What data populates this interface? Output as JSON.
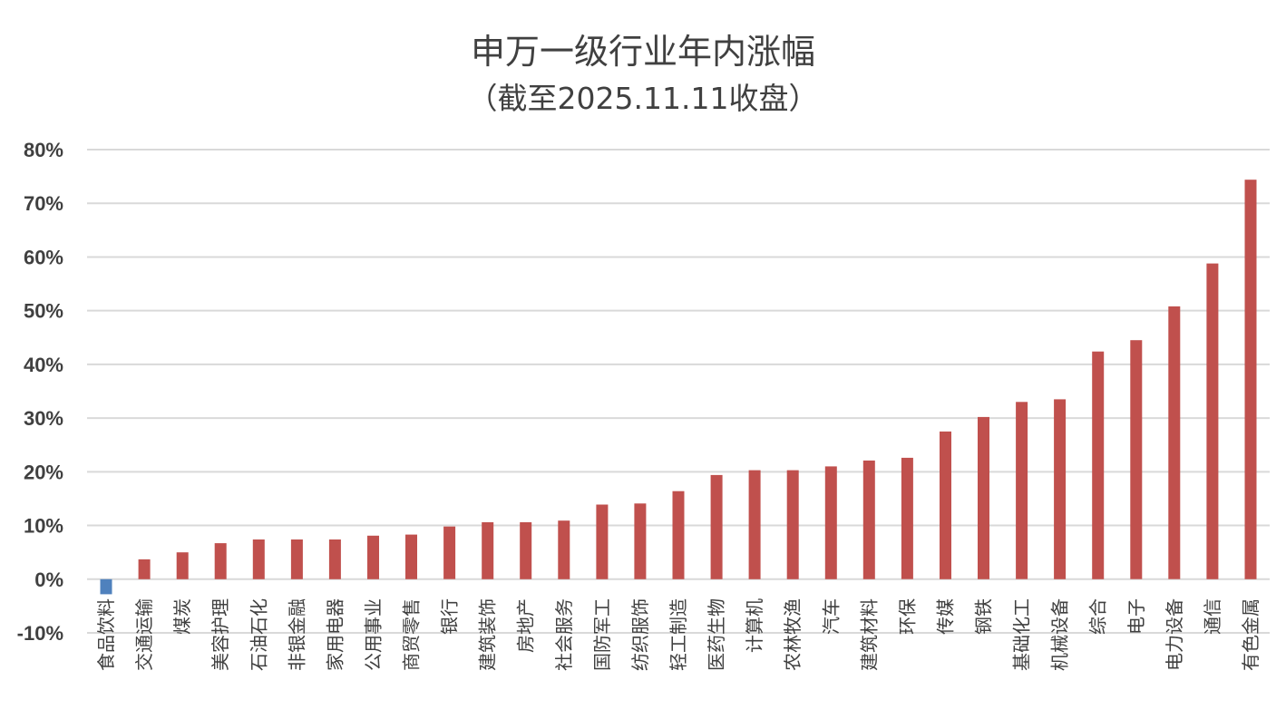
{
  "chart_data": {
    "type": "bar",
    "title": "申万一级行业年内涨幅",
    "subtitle": "（截至2025.11.11收盘）",
    "ylim": [
      -10,
      80
    ],
    "yticks": [
      80,
      70,
      60,
      50,
      40,
      30,
      20,
      10,
      0,
      -10
    ],
    "ytick_labels": [
      "80%",
      "70%",
      "60%",
      "50%",
      "40%",
      "30%",
      "20%",
      "10%",
      "0%",
      "-10%"
    ],
    "grid": true,
    "colors": {
      "positive": "#c0504d",
      "negative": "#4f81bd",
      "grid": "#d9d9d9",
      "text": "#404040"
    },
    "categories": [
      "食品饮料",
      "交通运输",
      "煤炭",
      "美容护理",
      "石油石化",
      "非银金融",
      "家用电器",
      "公用事业",
      "商贸零售",
      "银行",
      "建筑装饰",
      "房地产",
      "社会服务",
      "国防军工",
      "纺织服饰",
      "轻工制造",
      "医药生物",
      "计算机",
      "农林牧渔",
      "汽车",
      "建筑材料",
      "环保",
      "传媒",
      "钢铁",
      "基础化工",
      "机械设备",
      "综合",
      "电子",
      "电力设备",
      "通信",
      "有色金属"
    ],
    "values": [
      -2.8,
      3.7,
      5.0,
      6.7,
      7.4,
      7.4,
      7.4,
      8.1,
      8.3,
      9.8,
      10.6,
      10.6,
      10.9,
      13.9,
      14.1,
      16.4,
      19.4,
      20.3,
      20.3,
      21.0,
      22.1,
      22.6,
      27.5,
      30.2,
      33.0,
      33.5,
      42.4,
      44.5,
      50.8,
      58.8,
      74.4
    ]
  }
}
